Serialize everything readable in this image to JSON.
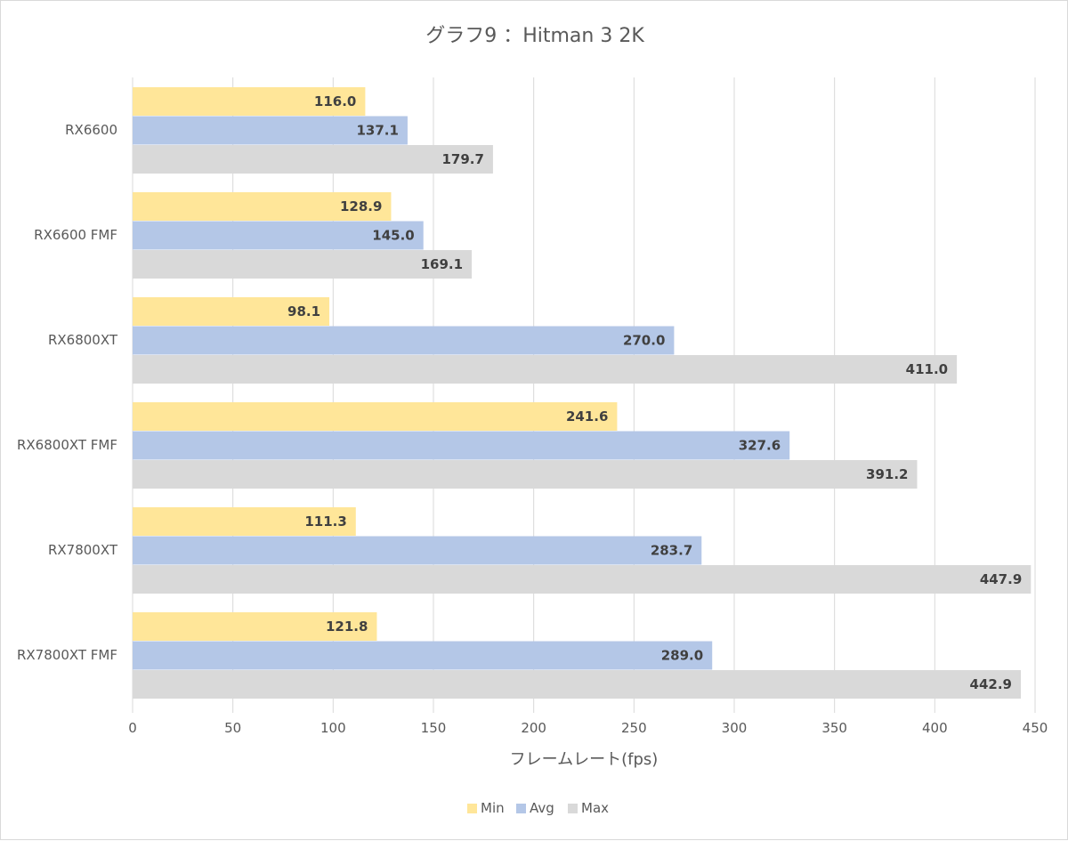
{
  "chart_data": {
    "type": "bar",
    "orientation": "horizontal",
    "title": "グラフ9 ：Hitman 3 2K",
    "xlabel": "フレームレート(fps)",
    "ylabel": "",
    "xlim": [
      0,
      450
    ],
    "xticks": [
      0,
      50,
      100,
      150,
      200,
      250,
      300,
      350,
      400,
      450
    ],
    "grid": "vertical",
    "legend_position": "bottom",
    "categories": [
      "RX6600",
      "RX6600 FMF",
      "RX6800XT",
      "RX6800XT FMF",
      "RX7800XT",
      "RX7800XT FMF"
    ],
    "series": [
      {
        "name": "Min",
        "color": "#ffe699",
        "values": [
          116.0,
          128.9,
          98.1,
          241.6,
          111.3,
          121.8
        ],
        "labels": [
          "116.0",
          "128.9",
          "98.1",
          "241.6",
          "111.3",
          "121.8"
        ]
      },
      {
        "name": "Avg",
        "color": "#b4c7e7",
        "values": [
          137.1,
          145.0,
          270.0,
          327.6,
          283.7,
          289.0
        ],
        "labels": [
          "137.1",
          "145.0",
          "270.0",
          "327.6",
          "283.7",
          "289.0"
        ]
      },
      {
        "name": "Max",
        "color": "#d9d9d9",
        "values": [
          179.7,
          169.1,
          411.0,
          391.2,
          447.9,
          442.9
        ],
        "labels": [
          "179.7",
          "169.1",
          "411.0",
          "391.2",
          "447.9",
          "442.9"
        ]
      }
    ]
  }
}
